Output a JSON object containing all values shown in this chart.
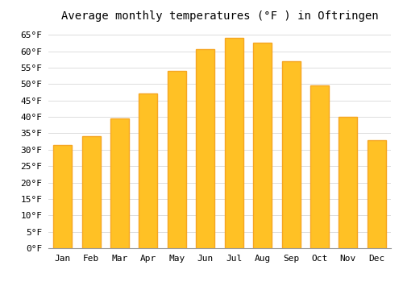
{
  "title": "Average monthly temperatures (°F ) in Oftringen",
  "months": [
    "Jan",
    "Feb",
    "Mar",
    "Apr",
    "May",
    "Jun",
    "Jul",
    "Aug",
    "Sep",
    "Oct",
    "Nov",
    "Dec"
  ],
  "values": [
    31.5,
    34.0,
    39.5,
    47.0,
    54.0,
    60.5,
    64.0,
    62.5,
    57.0,
    49.5,
    40.0,
    33.0
  ],
  "bar_color_face": "#FFC125",
  "bar_color_edge": "#F5A623",
  "background_color": "#FFFFFF",
  "grid_color": "#DDDDDD",
  "ylim": [
    0,
    67
  ],
  "yticks": [
    0,
    5,
    10,
    15,
    20,
    25,
    30,
    35,
    40,
    45,
    50,
    55,
    60,
    65
  ],
  "title_fontsize": 10,
  "tick_fontsize": 8,
  "font_family": "monospace"
}
